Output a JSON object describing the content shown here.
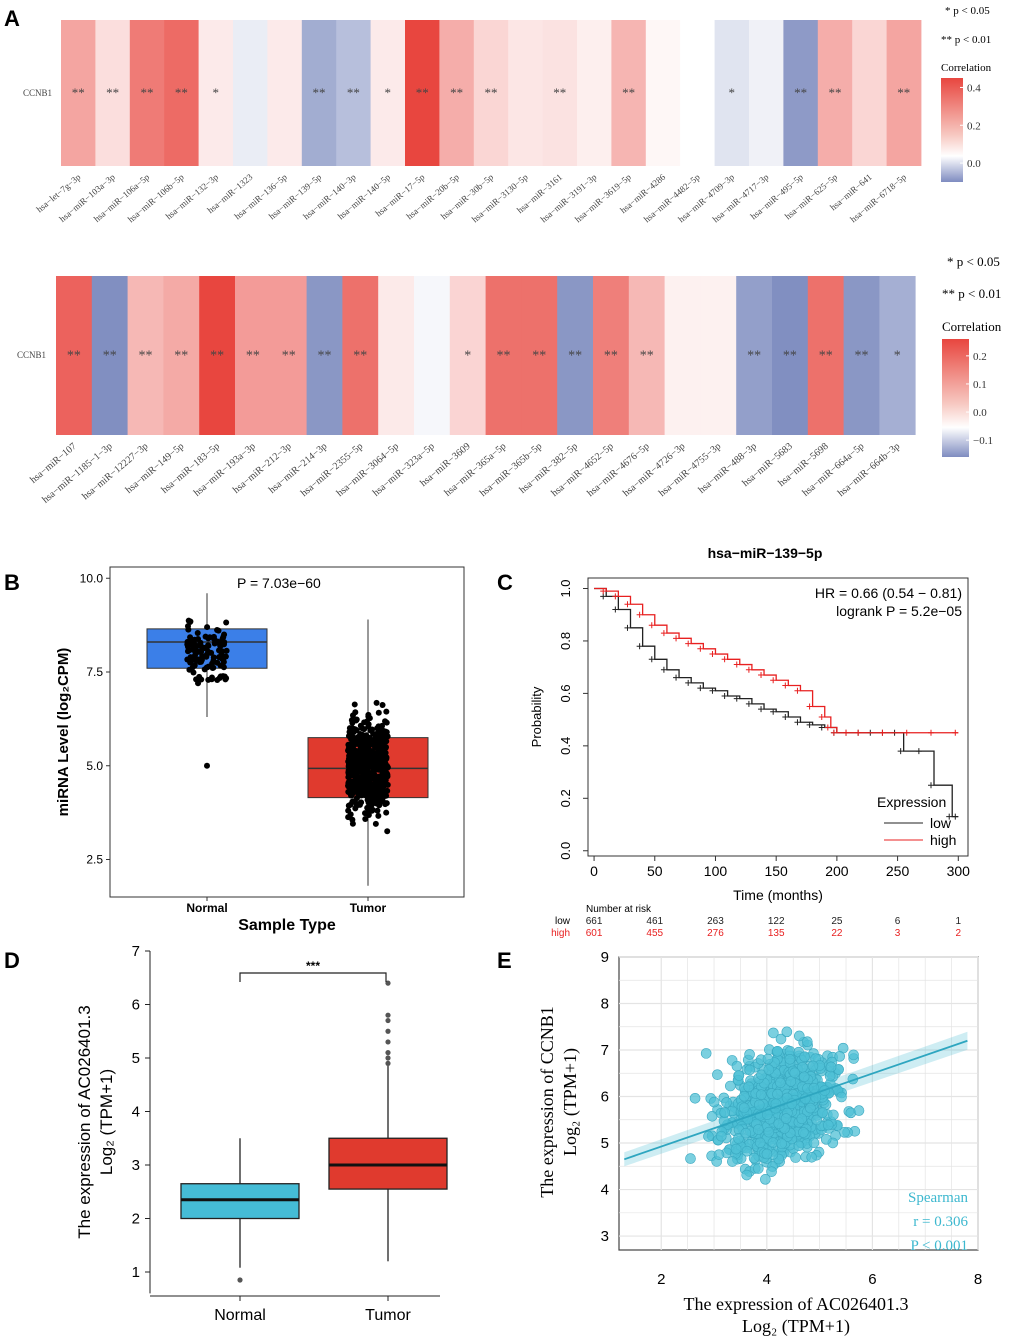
{
  "panel_labels": {
    "a": "A",
    "b": "B",
    "c": "C",
    "d": "D",
    "e": "E"
  },
  "heatmap_legend": {
    "sig1": "* p < 0.05",
    "sig2": "** p < 0.01",
    "title": "Correlation"
  },
  "colors": {
    "red": "#e8463f",
    "blue": "#6f7fb8",
    "tumor": "#e03a2e",
    "normal": "#3b7fe8",
    "teal": "#3db8cf",
    "cyan_box": "#45bcd6"
  },
  "chart_data": [
    {
      "type": "heatmap",
      "id": "A-top",
      "row_label": "CCNB1",
      "columns": [
        "hsa−let−7g−3p",
        "hsa−miR−103a−3p",
        "hsa−miR−106a−5p",
        "hsa−miR−106b−5p",
        "hsa−miR−132−3p",
        "hsa−miR−1323",
        "hsa−miR−136−5p",
        "hsa−miR−139−5p",
        "hsa−miR−140−3p",
        "hsa−miR−140−5p",
        "hsa−miR−17−5p",
        "hsa−miR−20b−5p",
        "hsa−miR−30b−5p",
        "hsa−miR−3130−5p",
        "hsa−miR−3161",
        "hsa−miR−3191−3p",
        "hsa−miR−3619−5p",
        "hsa−miR−4286",
        "hsa−miR−4482−5p",
        "hsa−miR−4709−3p",
        "hsa−miR−4717−3p",
        "hsa−miR−495−5p",
        "hsa−miR−625−5p",
        "hsa−miR−641",
        "hsa−miR−6718−5p"
      ],
      "values": [
        0.22,
        0.08,
        0.32,
        0.36,
        0.05,
        -0.04,
        0.05,
        -0.18,
        -0.14,
        0.05,
        0.45,
        0.2,
        0.1,
        0.06,
        0.07,
        0.04,
        0.18,
        0.02,
        0.0,
        -0.06,
        -0.03,
        -0.22,
        0.2,
        0.1,
        0.22
      ],
      "significance": [
        "**",
        "**",
        "**",
        "**",
        "*",
        "",
        "",
        "**",
        "**",
        "*",
        "**",
        "**",
        "**",
        "",
        "**",
        "",
        "**",
        "",
        "",
        "*",
        "",
        "**",
        "**",
        "",
        "**"
      ],
      "legend_ticks": [
        "0.4",
        "0.2",
        "0.0"
      ],
      "legend_range": [
        -0.1,
        0.45
      ]
    },
    {
      "type": "heatmap",
      "id": "A-bottom",
      "row_label": "CCNB1",
      "columns": [
        "hsa−miR−107",
        "hsa−miR−1185−1−3p",
        "hsa−miR−12227−3p",
        "hsa−miR−149−5p",
        "hsa−miR−183−5p",
        "hsa−miR−193a−3p",
        "hsa−miR−212−3p",
        "hsa−miR−214−3p",
        "hsa−miR−2355−5p",
        "hsa−miR−3064−5p",
        "hsa−miR−323a−5p",
        "hsa−miR−3609",
        "hsa−miR−365a−5p",
        "hsa−miR−365b−5p",
        "hsa−miR−382−5p",
        "hsa−miR−4652−5p",
        "hsa−miR−4676−5p",
        "hsa−miR−4726−3p",
        "hsa−miR−4755−3p",
        "hsa−miR−488−3p",
        "hsa−miR−5683",
        "hsa−miR−5698",
        "hsa−miR−664a−5p",
        "hsa−miR−664b−3p"
      ],
      "values": [
        0.22,
        -0.14,
        0.1,
        0.12,
        0.26,
        0.14,
        0.14,
        -0.13,
        0.2,
        0.03,
        -0.01,
        0.06,
        0.2,
        0.2,
        -0.13,
        0.18,
        0.1,
        0.02,
        0.02,
        -0.12,
        -0.14,
        0.2,
        -0.13,
        -0.1
      ],
      "significance": [
        "**",
        "**",
        "**",
        "**",
        "**",
        "**",
        "**",
        "**",
        "**",
        "",
        "",
        "*",
        "**",
        "**",
        "**",
        "**",
        "**",
        "",
        "",
        "**",
        "**",
        "**",
        "**",
        "*"
      ],
      "legend_ticks": [
        "0.2",
        "0.1",
        "0.0",
        "−0.1"
      ],
      "legend_range": [
        -0.16,
        0.26
      ]
    },
    {
      "type": "box",
      "id": "B",
      "title": "",
      "annotation": "P = 7.03e−60",
      "xlabel": "Sample Type",
      "ylabel": "miRNA Level (log₂CPM)",
      "categories": [
        "Normal",
        "Tumor"
      ],
      "ylim": [
        1.5,
        10.3
      ],
      "yticks": [
        "2.5",
        "5.0",
        "7.5",
        "10.0"
      ],
      "ytick_values": [
        2.5,
        5.0,
        7.5,
        10.0
      ],
      "boxes": [
        {
          "q1": 7.6,
          "median": 8.3,
          "q3": 8.65,
          "whisker_low": 6.3,
          "whisker_high": 9.6,
          "outliers": [
            5.0
          ]
        },
        {
          "q1": 4.15,
          "median": 4.93,
          "q3": 5.75,
          "whisker_low": 1.8,
          "whisker_high": 8.9,
          "outliers": []
        }
      ]
    },
    {
      "type": "line",
      "id": "C",
      "title": "hsa−miR−139−5p",
      "xlabel": "Time (months)",
      "ylabel": "Probability",
      "xlim": [
        -5,
        308
      ],
      "ylim": [
        -0.02,
        1.04
      ],
      "xticks": [
        "0",
        "50",
        "100",
        "150",
        "200",
        "250",
        "300"
      ],
      "xtick_values": [
        0,
        50,
        100,
        150,
        200,
        250,
        300
      ],
      "yticks": [
        "0.0",
        "0.2",
        "0.4",
        "0.6",
        "0.8",
        "1.0"
      ],
      "ytick_values": [
        0,
        0.2,
        0.4,
        0.6,
        0.8,
        1.0
      ],
      "hr_text": "HR = 0.66 (0.54 − 0.81)",
      "logrank_text": "logrank P = 5.2e−05",
      "legend_title": "Expression",
      "series": [
        {
          "name": "low",
          "color": "#222222",
          "x": [
            0,
            10,
            20,
            30,
            40,
            50,
            60,
            70,
            80,
            90,
            100,
            110,
            120,
            130,
            140,
            150,
            160,
            170,
            180,
            190,
            200,
            210,
            220,
            230,
            240,
            250,
            255,
            270,
            280,
            295,
            300
          ],
          "y": [
            1.0,
            0.97,
            0.92,
            0.85,
            0.78,
            0.73,
            0.69,
            0.66,
            0.64,
            0.62,
            0.61,
            0.59,
            0.58,
            0.56,
            0.54,
            0.53,
            0.51,
            0.49,
            0.48,
            0.47,
            0.45,
            0.45,
            0.45,
            0.45,
            0.45,
            0.45,
            0.38,
            0.38,
            0.25,
            0.13,
            0.13
          ]
        },
        {
          "name": "high",
          "color": "#e82020",
          "x": [
            0,
            10,
            20,
            30,
            40,
            50,
            60,
            70,
            80,
            90,
            100,
            110,
            120,
            130,
            140,
            150,
            160,
            170,
            180,
            190,
            195,
            200,
            210,
            220,
            240,
            260,
            280,
            300
          ],
          "y": [
            1.0,
            0.99,
            0.97,
            0.94,
            0.9,
            0.86,
            0.83,
            0.81,
            0.79,
            0.77,
            0.75,
            0.73,
            0.71,
            0.69,
            0.67,
            0.65,
            0.63,
            0.61,
            0.55,
            0.51,
            0.47,
            0.45,
            0.45,
            0.45,
            0.45,
            0.45,
            0.45,
            0.45
          ]
        }
      ],
      "risk_table": {
        "header": "Number at risk",
        "rows": [
          {
            "label": "low",
            "values": [
              "661",
              "461",
              "263",
              "122",
              "25",
              "6",
              "1"
            ]
          },
          {
            "label": "high",
            "values": [
              "601",
              "455",
              "276",
              "135",
              "22",
              "3",
              "2"
            ]
          }
        ]
      }
    },
    {
      "type": "box",
      "id": "D",
      "annotation": "***",
      "xlabel": "",
      "ylabel": "The expression of AC026401.3",
      "ylabel2": "Log₂ (TPM+1)",
      "categories": [
        "Normal",
        "Tumor"
      ],
      "ylim": [
        0.6,
        7.0
      ],
      "yticks": [
        "1",
        "2",
        "3",
        "4",
        "5",
        "6",
        "7"
      ],
      "ytick_values": [
        1,
        2,
        3,
        4,
        5,
        6,
        7
      ],
      "boxes": [
        {
          "q1": 2.0,
          "median": 2.35,
          "q3": 2.65,
          "whisker_low": 1.08,
          "whisker_high": 3.5,
          "outliers": [
            0.85
          ]
        },
        {
          "q1": 2.55,
          "median": 3.0,
          "q3": 3.5,
          "whisker_low": 1.2,
          "whisker_high": 4.85,
          "outliers": [
            4.9,
            5.0,
            5.1,
            5.3,
            5.5,
            5.7,
            5.8,
            6.4
          ]
        }
      ]
    },
    {
      "type": "scatter",
      "id": "E",
      "xlabel": "The expression of AC026401.3",
      "xlabel2": "Log₂ (TPM+1)",
      "ylabel": "The expression of CCNB1",
      "ylabel2": "Log₂ (TPM+1)",
      "xlim": [
        1.2,
        8.0
      ],
      "ylim": [
        2.7,
        9.0
      ],
      "xticks": [
        "2",
        "4",
        "6",
        "8"
      ],
      "xtick_values": [
        2,
        4,
        6,
        8
      ],
      "yticks": [
        "3",
        "4",
        "5",
        "6",
        "7",
        "8",
        "9"
      ],
      "ytick_values": [
        3,
        4,
        5,
        6,
        7,
        8,
        9
      ],
      "fit": {
        "x": [
          1.3,
          7.8
        ],
        "y": [
          4.65,
          7.2
        ]
      },
      "stats": {
        "method": "Spearman",
        "r": "r = 0.306",
        "p": "P < 0.001"
      },
      "cloud": {
        "n": 900,
        "center_x": 4.3,
        "center_y": 5.8,
        "sd_x": 0.85,
        "sd_y": 0.95,
        "corr": 0.3
      }
    }
  ]
}
